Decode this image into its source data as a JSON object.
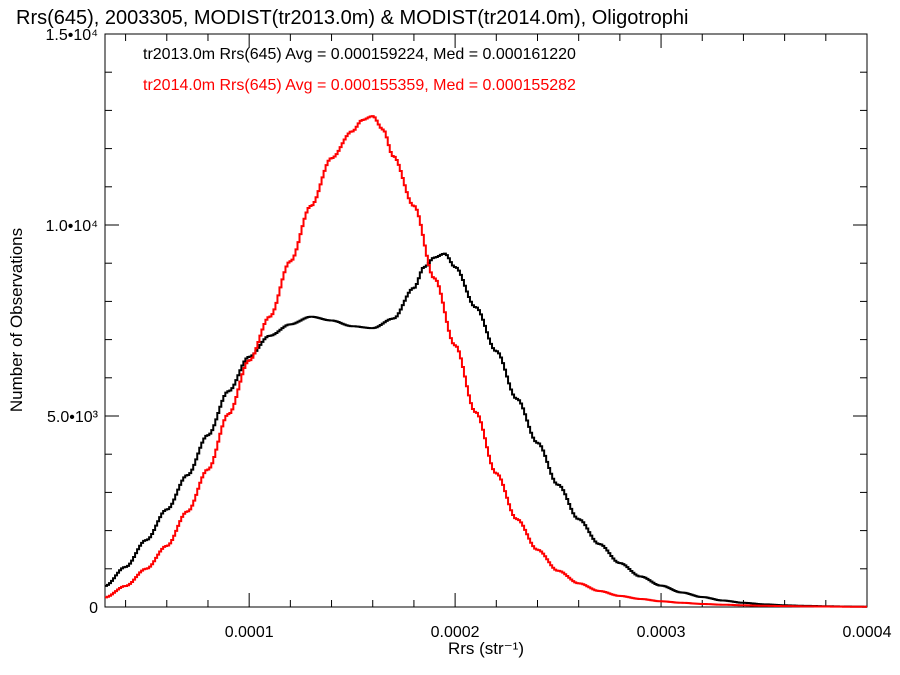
{
  "chart_data": {
    "type": "line",
    "title": "Rrs(645), 2003305, MODIST(tr2013.0m) & MODIST(tr2014.0m), Oligotrophi",
    "xlabel": "Rrs (str⁻¹)",
    "ylabel": "Number of Observations",
    "xlim": [
      3e-05,
      0.0004
    ],
    "ylim": [
      0,
      15000
    ],
    "x_ticks": [
      {
        "value": 0.0001,
        "label": "0.0001"
      },
      {
        "value": 0.0002,
        "label": "0.0002"
      },
      {
        "value": 0.0003,
        "label": "0.0003"
      },
      {
        "value": 0.0004,
        "label": "0.0004"
      }
    ],
    "y_ticks": [
      {
        "value": 0,
        "label": "0"
      },
      {
        "value": 5000,
        "label": "5.0•10³"
      },
      {
        "value": 10000,
        "label": "1.0•10⁴"
      },
      {
        "value": 15000,
        "label": "1.5•10⁴"
      }
    ],
    "grid": false,
    "legend_position": "top-left",
    "series": [
      {
        "name": "tr2013.0m",
        "legend_text": "tr2013.0m Rrs(645) Avg = 0.000159224, Med = 0.000161220",
        "color": "#000000",
        "points": [
          [
            3e-05,
            550
          ],
          [
            4e-05,
            1050
          ],
          [
            5e-05,
            1750
          ],
          [
            6e-05,
            2550
          ],
          [
            7e-05,
            3450
          ],
          [
            8e-05,
            4500
          ],
          [
            9e-05,
            5650
          ],
          [
            0.0001,
            6550
          ],
          [
            0.00011,
            7100
          ],
          [
            0.00012,
            7400
          ],
          [
            0.00013,
            7600
          ],
          [
            0.00014,
            7500
          ],
          [
            0.00015,
            7350
          ],
          [
            0.00016,
            7300
          ],
          [
            0.00017,
            7550
          ],
          [
            0.00018,
            8350
          ],
          [
            0.000185,
            8900
          ],
          [
            0.00019,
            9150
          ],
          [
            0.000195,
            9250
          ],
          [
            0.0002,
            8900
          ],
          [
            0.00021,
            7850
          ],
          [
            0.00022,
            6700
          ],
          [
            0.00023,
            5450
          ],
          [
            0.00024,
            4300
          ],
          [
            0.00025,
            3200
          ],
          [
            0.00026,
            2300
          ],
          [
            0.00027,
            1650
          ],
          [
            0.00028,
            1150
          ],
          [
            0.00029,
            800
          ],
          [
            0.0003,
            560
          ],
          [
            0.00031,
            380
          ],
          [
            0.00032,
            260
          ],
          [
            0.00033,
            170
          ],
          [
            0.00034,
            110
          ],
          [
            0.00035,
            70
          ],
          [
            0.00036,
            45
          ],
          [
            0.00037,
            30
          ],
          [
            0.00038,
            20
          ],
          [
            0.00039,
            12
          ],
          [
            0.0004,
            8
          ]
        ]
      },
      {
        "name": "tr2014.0m",
        "legend_text": "tr2014.0m Rrs(645) Avg = 0.000155359, Med = 0.000155282",
        "color": "#ff0000",
        "points": [
          [
            3e-05,
            250
          ],
          [
            4e-05,
            550
          ],
          [
            5e-05,
            1000
          ],
          [
            6e-05,
            1600
          ],
          [
            7e-05,
            2500
          ],
          [
            8e-05,
            3600
          ],
          [
            9e-05,
            5050
          ],
          [
            0.0001,
            6450
          ],
          [
            0.00011,
            7600
          ],
          [
            0.00012,
            9050
          ],
          [
            0.00013,
            10500
          ],
          [
            0.00014,
            11750
          ],
          [
            0.00015,
            12450
          ],
          [
            0.000155,
            12750
          ],
          [
            0.00016,
            12850
          ],
          [
            0.000165,
            12500
          ],
          [
            0.00017,
            11800
          ],
          [
            0.00018,
            10500
          ],
          [
            0.00019,
            8600
          ],
          [
            0.0002,
            6850
          ],
          [
            0.00021,
            5100
          ],
          [
            0.00022,
            3500
          ],
          [
            0.00023,
            2300
          ],
          [
            0.00024,
            1500
          ],
          [
            0.00025,
            950
          ],
          [
            0.00026,
            620
          ],
          [
            0.00027,
            420
          ],
          [
            0.00028,
            290
          ],
          [
            0.00029,
            210
          ],
          [
            0.0003,
            150
          ],
          [
            0.00031,
            110
          ],
          [
            0.00032,
            80
          ],
          [
            0.00033,
            60
          ],
          [
            0.00034,
            45
          ],
          [
            0.00035,
            32
          ],
          [
            0.00036,
            24
          ],
          [
            0.00037,
            17
          ],
          [
            0.00038,
            12
          ],
          [
            0.00039,
            8
          ],
          [
            0.0004,
            5
          ]
        ]
      }
    ]
  }
}
